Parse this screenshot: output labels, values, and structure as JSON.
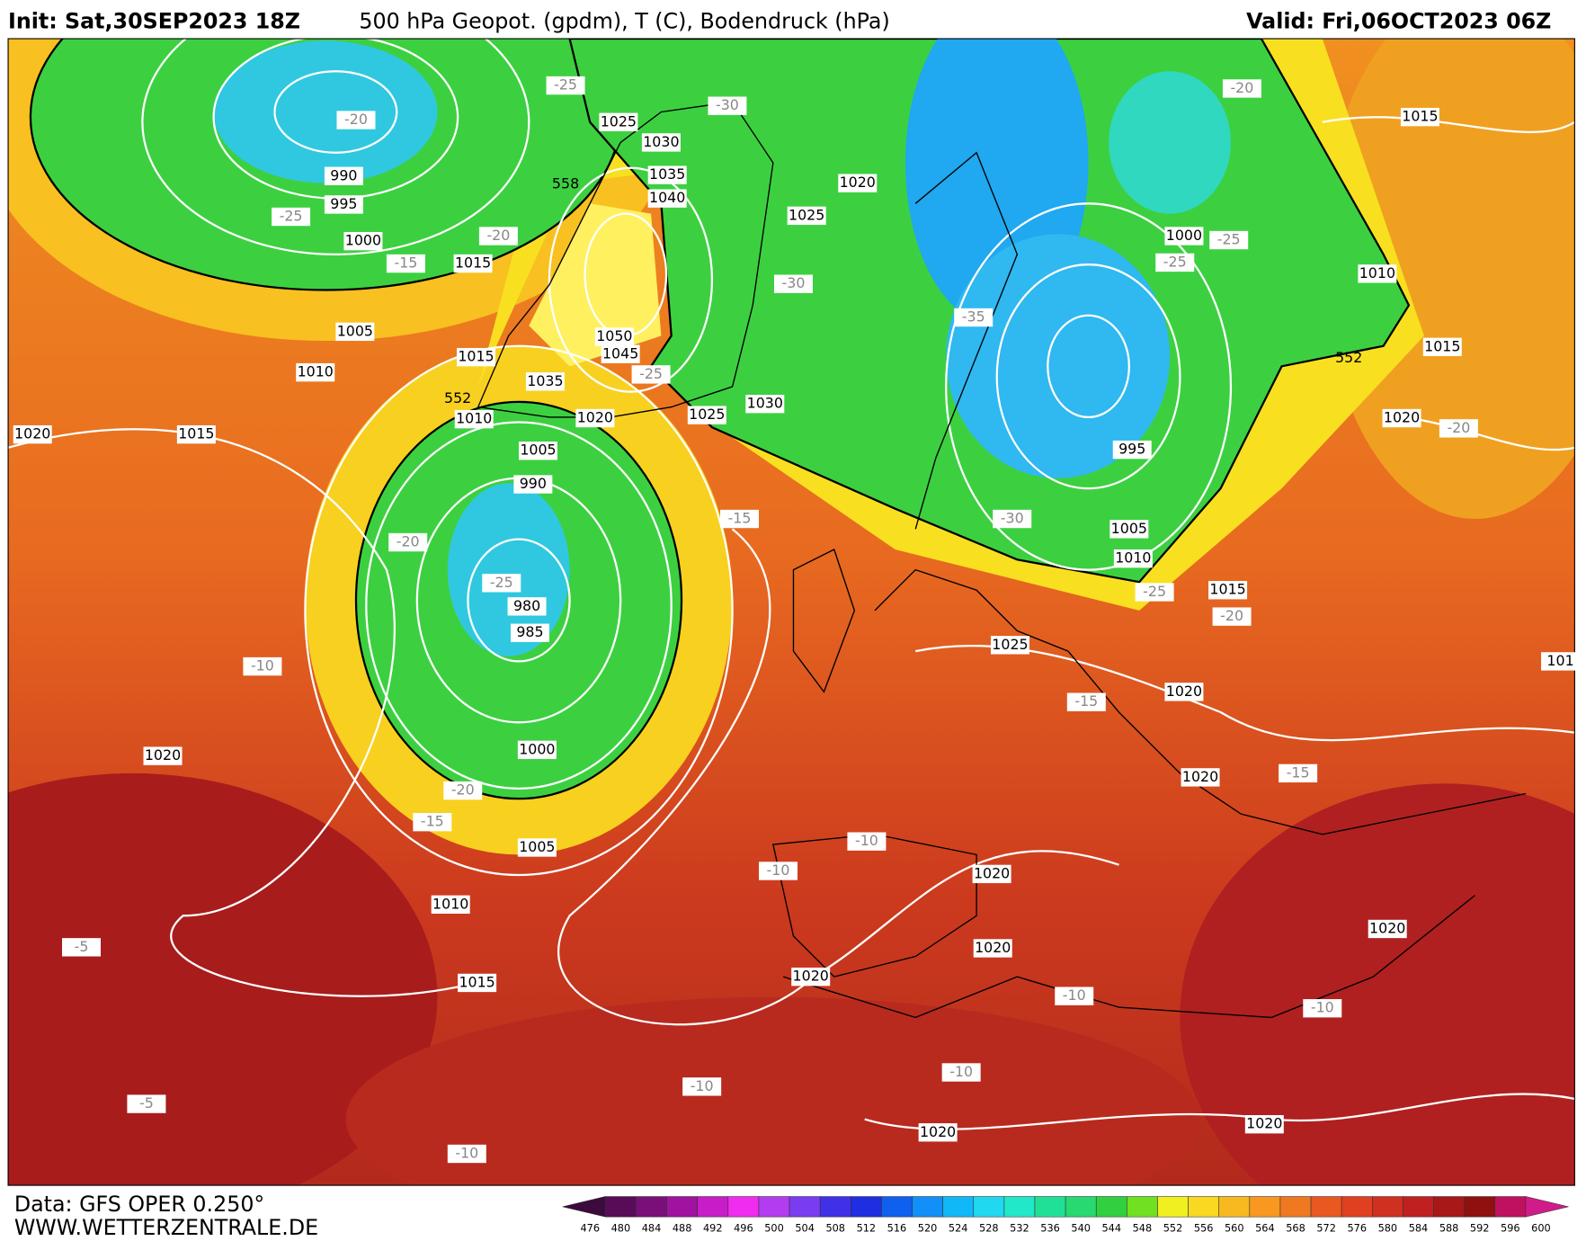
{
  "header": {
    "init": "Init: Sat,30SEP2023 18Z",
    "title": "500 hPa Geopot. (gpdm), T (C), Bodendruck (hPa)",
    "valid": "Valid: Fri,06OCT2023 06Z"
  },
  "footer": {
    "source": "Data: GFS OPER 0.250°",
    "site": "WWW.WETTERZENTRALE.DE"
  },
  "colorbar": {
    "values": [
      476,
      480,
      484,
      488,
      492,
      496,
      500,
      504,
      508,
      512,
      516,
      520,
      524,
      528,
      532,
      536,
      540,
      544,
      548,
      552,
      556,
      560,
      564,
      568,
      572,
      576,
      580,
      584,
      588,
      592,
      596,
      600
    ],
    "colors": [
      "#3c0a3c",
      "#580c58",
      "#7a0f7a",
      "#a012a0",
      "#c81cc8",
      "#f02cf0",
      "#b43cf0",
      "#7a3cf0",
      "#4030e8",
      "#1e2ee0",
      "#1060f0",
      "#1090f8",
      "#10b8f8",
      "#20d8f0",
      "#20e8c8",
      "#20e098",
      "#28d870",
      "#30d040",
      "#70e020",
      "#f0f020",
      "#f8d820",
      "#f8b820",
      "#f89820",
      "#f07820",
      "#e85820",
      "#e04020",
      "#d03020",
      "#c02020",
      "#a81818",
      "#901010",
      "#c01060",
      "#d01c88"
    ]
  },
  "map": {
    "pressure_labels": [
      990,
      995,
      1000,
      1015,
      1005,
      1010,
      1015,
      1010,
      1020,
      1015,
      1025,
      1030,
      1035,
      1040,
      1020,
      1025,
      1050,
      1045,
      1035,
      1020,
      1025,
      1030,
      1005,
      990,
      980,
      985,
      1000,
      1005,
      1010,
      1015,
      1020,
      1000,
      1010,
      1015,
      1015,
      1020,
      995,
      1005,
      1010,
      1015,
      1025,
      1020,
      1020,
      1020,
      1020,
      1020,
      1020,
      1020,
      1020,
      101
    ],
    "temperature_labels": [
      -25,
      -30,
      -20,
      -25,
      -20,
      -15,
      -30,
      -25,
      -35,
      -20,
      -25,
      -25,
      -20,
      -20,
      -15,
      -25,
      -30,
      -25,
      -20,
      -15,
      -15,
      -10,
      -20,
      -15,
      -10,
      -10,
      -5,
      -10,
      -10,
      -10,
      -10,
      -5,
      -10
    ],
    "geopotential_labels": [
      558,
      552,
      552
    ]
  }
}
